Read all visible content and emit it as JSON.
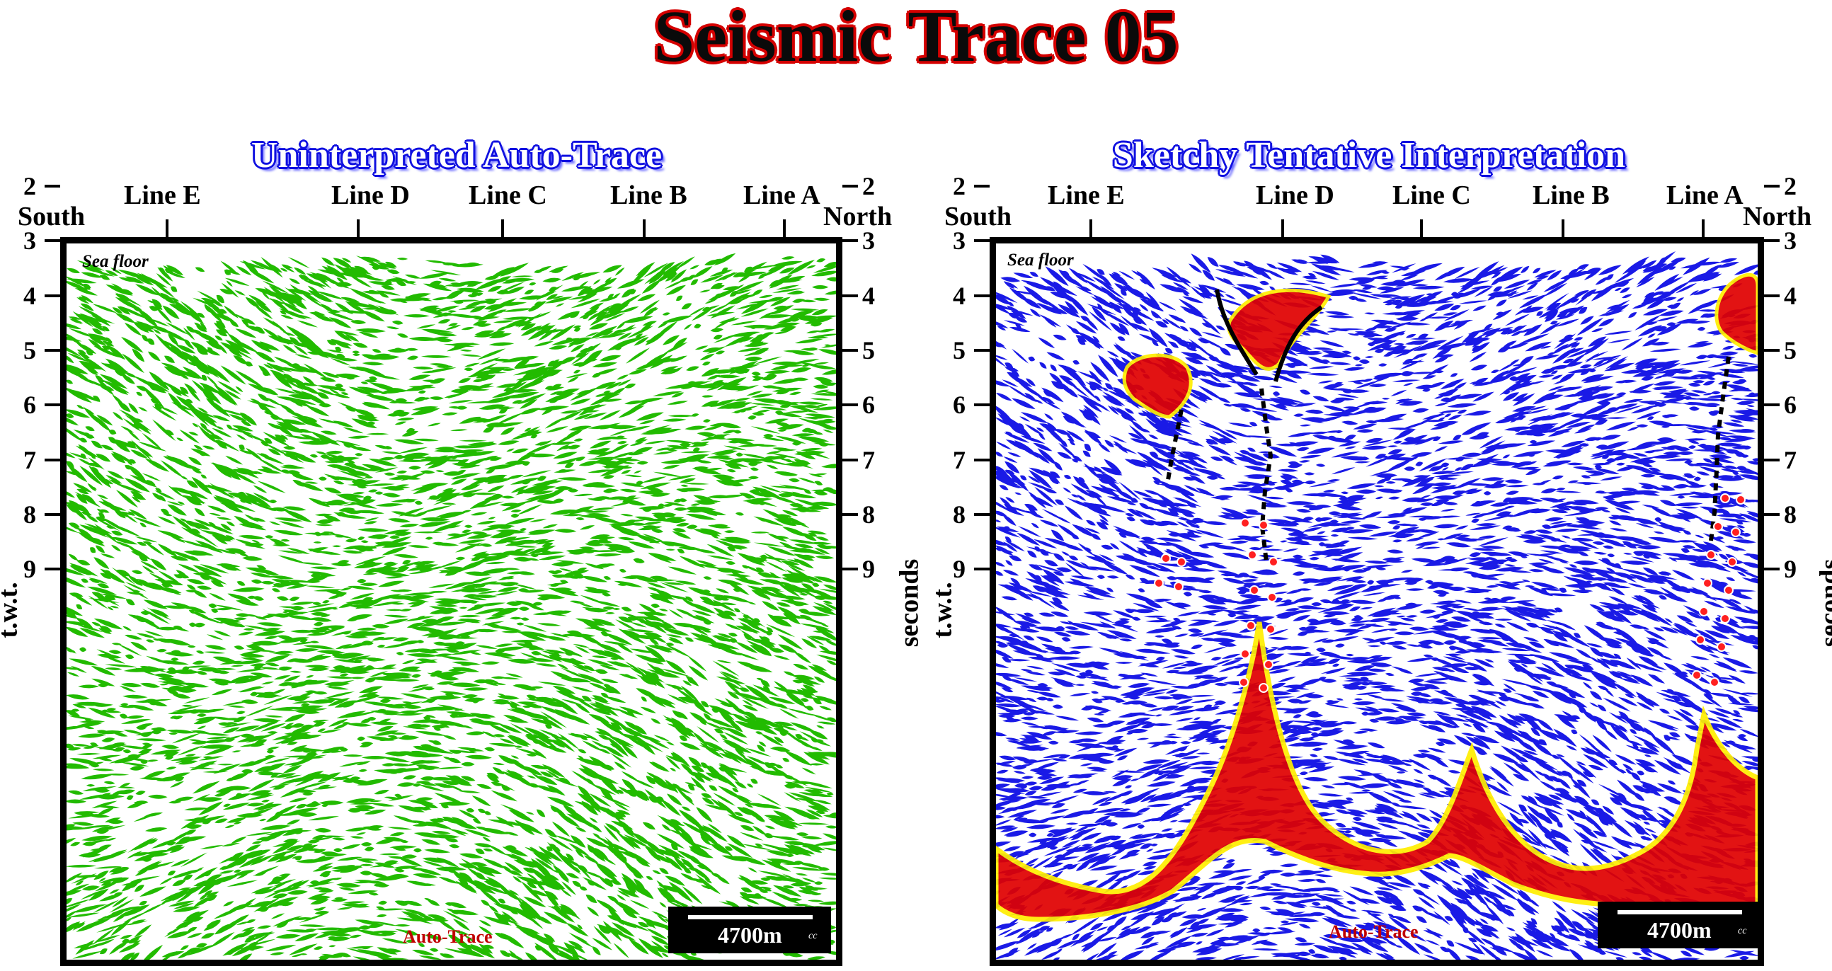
{
  "title": "Seismic Trace 05",
  "colors": {
    "title_outline": "#d40000",
    "panel_title": "#1010e0",
    "left_trace": "#22bb00",
    "right_trace": "#1a1ae6",
    "salt": "#e00000",
    "salt_rim": "#ffee00",
    "fault": "#000000",
    "fault_markers": "#ff2020"
  },
  "left": {
    "title": "Uninterpreted Auto-Trace",
    "south": "South",
    "north": "North",
    "lines": [
      "Line E",
      "Line D",
      "Line C",
      "Line B",
      "Line A"
    ],
    "y_axis_label": "t.w.t.",
    "y_axis_right_label": "seconds",
    "y_ticks": [
      "2",
      "3",
      "4",
      "5",
      "6",
      "7",
      "8",
      "9"
    ],
    "sea_floor": "Sea floor",
    "footer": "Auto-Trace",
    "scale": "4700m",
    "scale_mark": "cc",
    "trace_icon": "green-seismic-texture"
  },
  "right": {
    "title": "Sketchy Tentative Interpretation",
    "south": "South",
    "north": "North",
    "lines": [
      "Line E",
      "Line D",
      "Line C",
      "Line B",
      "Line A"
    ],
    "y_axis_label": "t.w.t.",
    "y_axis_right_label": "seconds",
    "y_ticks": [
      "2",
      "3",
      "4",
      "5",
      "6",
      "7",
      "8",
      "9"
    ],
    "sea_floor": "Sea floor",
    "footer": "Auto-Trace",
    "scale": "4700m",
    "scale_mark": "cc",
    "trace_icon": "blue-seismic-texture"
  }
}
